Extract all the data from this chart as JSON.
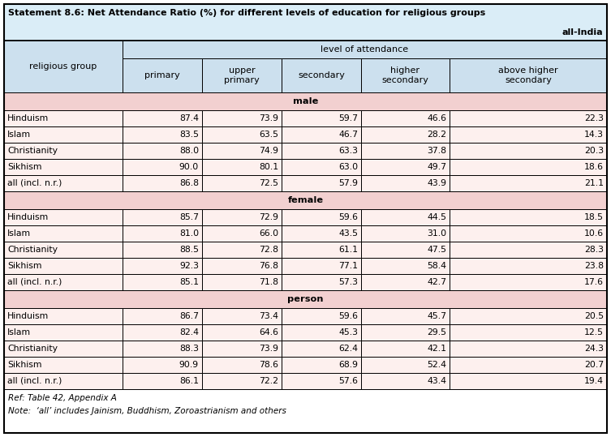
{
  "title_line1": "Statement 8.6: Net Attendance Ratio (%) for different levels of education for religious groups",
  "title_line2": "all-India",
  "col_header_main": "level of attendance",
  "col_headers": [
    "religious group",
    "primary",
    "upper\nprimary",
    "secondary",
    "higher\nsecondary",
    "above higher\nsecondary"
  ],
  "section_headers": [
    "male",
    "female",
    "person"
  ],
  "rows": {
    "male": [
      [
        "Hinduism",
        "87.4",
        "73.9",
        "59.7",
        "46.6",
        "22.3"
      ],
      [
        "Islam",
        "83.5",
        "63.5",
        "46.7",
        "28.2",
        "14.3"
      ],
      [
        "Christianity",
        "88.0",
        "74.9",
        "63.3",
        "37.8",
        "20.3"
      ],
      [
        "Sikhism",
        "90.0",
        "80.1",
        "63.0",
        "49.7",
        "18.6"
      ],
      [
        "all (incl. n.r.)",
        "86.8",
        "72.5",
        "57.9",
        "43.9",
        "21.1"
      ]
    ],
    "female": [
      [
        "Hinduism",
        "85.7",
        "72.9",
        "59.6",
        "44.5",
        "18.5"
      ],
      [
        "Islam",
        "81.0",
        "66.0",
        "43.5",
        "31.0",
        "10.6"
      ],
      [
        "Christianity",
        "88.5",
        "72.8",
        "61.1",
        "47.5",
        "28.3"
      ],
      [
        "Sikhism",
        "92.3",
        "76.8",
        "77.1",
        "58.4",
        "23.8"
      ],
      [
        "all (incl. n.r.)",
        "85.1",
        "71.8",
        "57.3",
        "42.7",
        "17.6"
      ]
    ],
    "person": [
      [
        "Hinduism",
        "86.7",
        "73.4",
        "59.6",
        "45.7",
        "20.5"
      ],
      [
        "Islam",
        "82.4",
        "64.6",
        "45.3",
        "29.5",
        "12.5"
      ],
      [
        "Christianity",
        "88.3",
        "73.9",
        "62.4",
        "42.1",
        "24.3"
      ],
      [
        "Sikhism",
        "90.9",
        "78.6",
        "68.9",
        "52.4",
        "20.7"
      ],
      [
        "all (incl. n.r.)",
        "86.1",
        "72.2",
        "57.6",
        "43.4",
        "19.4"
      ]
    ]
  },
  "footer_lines": [
    "Ref: Table 42, Appendix A",
    "Note:  ‘all’ includes Jainism, Buddhism, Zoroastrianism and others"
  ],
  "color_header_bg": "#cce0ee",
  "color_section_bg": "#f2d0d0",
  "color_data_bg": "#fdf0ee",
  "color_title_bg": "#daedf7",
  "color_white": "#ffffff"
}
